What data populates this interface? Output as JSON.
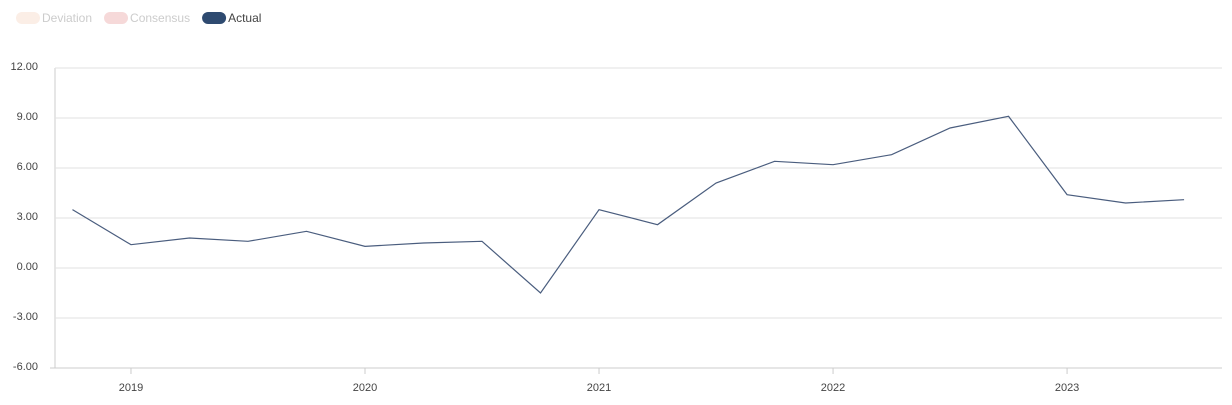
{
  "chart_data": {
    "type": "line",
    "legend": [
      {
        "name": "Deviation",
        "color": "#fbeee6",
        "active": false
      },
      {
        "name": "Consensus",
        "color": "#f6d9d9",
        "active": false
      },
      {
        "name": "Actual",
        "color": "#2e4a70",
        "active": true
      }
    ],
    "x": [
      2018.75,
      2019.0,
      2019.25,
      2019.5,
      2019.75,
      2020.0,
      2020.25,
      2020.5,
      2020.75,
      2021.0,
      2021.25,
      2021.5,
      2021.75,
      2022.0,
      2022.25,
      2022.5,
      2022.75,
      2023.0,
      2023.25,
      2023.5
    ],
    "series": [
      {
        "name": "Actual",
        "color": "#4a5d7e",
        "values": [
          3.5,
          1.4,
          1.8,
          1.6,
          2.2,
          1.3,
          1.5,
          1.6,
          -1.5,
          3.5,
          2.6,
          5.1,
          6.4,
          6.2,
          6.8,
          8.4,
          9.1,
          4.4,
          3.9,
          4.1
        ]
      }
    ],
    "xlim": [
      2018.654,
      2023.662
    ],
    "xticks": [
      2019,
      2020,
      2021,
      2022,
      2023
    ],
    "ylim": [
      -6,
      12
    ],
    "yticks": [
      {
        "value": 12,
        "label": "12.00"
      },
      {
        "value": 9,
        "label": "9.00"
      },
      {
        "value": 6,
        "label": "6.00"
      },
      {
        "value": 3,
        "label": "3.00"
      },
      {
        "value": 0,
        "label": "0.00"
      },
      {
        "value": -3,
        "label": "-3.00"
      },
      {
        "value": -6,
        "label": "-6.00"
      }
    ],
    "grid": true
  }
}
